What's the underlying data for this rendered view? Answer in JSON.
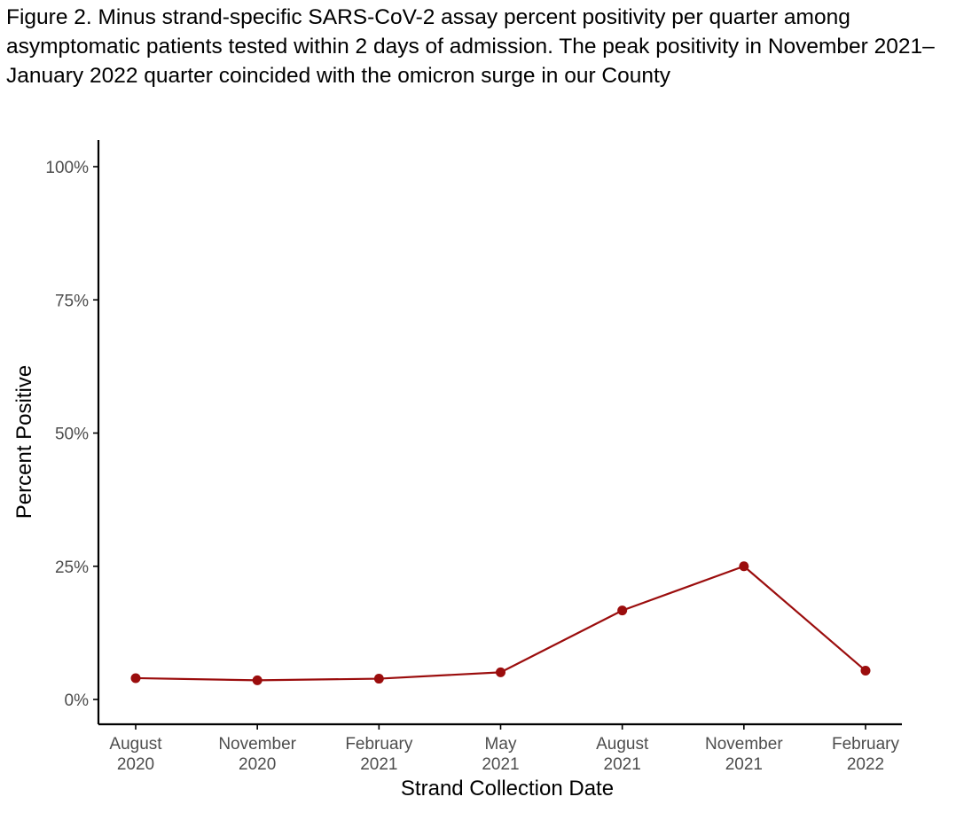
{
  "figure": {
    "caption": "Figure 2. Minus strand-specific SARS-CoV-2 assay percent positivity per quarter among asymptomatic patients tested within 2 days of admission. The peak positivity in November 2021–January 2022 quarter coincided with the omicron surge in our County"
  },
  "chart_data": {
    "type": "line",
    "title": "",
    "xlabel": "Strand Collection Date",
    "ylabel": "Percent Positive",
    "x": [
      "2020-08",
      "2020-11",
      "2021-02",
      "2021-05",
      "2021-08",
      "2021-11",
      "2022-02"
    ],
    "x_tick_labels": [
      [
        "August",
        "2020"
      ],
      [
        "November",
        "2020"
      ],
      [
        "February",
        "2021"
      ],
      [
        "May",
        "2021"
      ],
      [
        "August",
        "2021"
      ],
      [
        "November",
        "2021"
      ],
      [
        "February",
        "2022"
      ]
    ],
    "series": [
      {
        "values": [
          4.0,
          3.6,
          3.9,
          5.1,
          16.7,
          25.0,
          5.4
        ]
      }
    ],
    "ylim": [
      0,
      100
    ],
    "y_ticks": [
      0,
      25,
      50,
      75,
      100
    ],
    "y_tick_labels": [
      "0%",
      "25%",
      "50%",
      "75%",
      "100%"
    ],
    "grid": false,
    "legend": "none",
    "colors": {
      "series": "#9b0d0d",
      "axis": "#000000",
      "tick_label": "#4d4d4d"
    }
  }
}
